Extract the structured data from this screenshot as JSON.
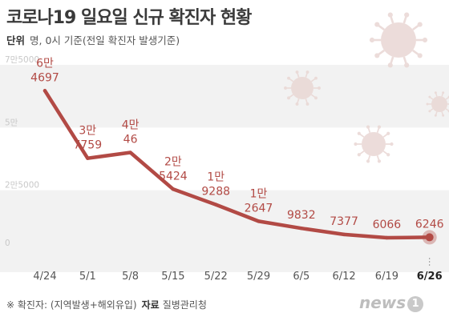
{
  "header": {
    "title": "코로나19 일요일 신규 확진자 현황",
    "unit_label": "단위",
    "unit_text": "명, 0시 기준(전일 확진자 발생기준)"
  },
  "footer": {
    "note": "※ 확진자: (지역발생+해외유입)",
    "source_label": "자료",
    "source_text": "질병관리청"
  },
  "logo": {
    "text": "news",
    "badge": "1"
  },
  "chart_data": {
    "type": "line",
    "title": "코로나19 일요일 신규 확진자 현황",
    "categories": [
      "4/24",
      "5/1",
      "5/8",
      "5/15",
      "5/22",
      "5/29",
      "6/5",
      "6/12",
      "6/19",
      "6/26"
    ],
    "series": [
      {
        "values": [
          64697,
          37759,
          40046,
          25424,
          19288,
          12647,
          9832,
          7377,
          6066,
          6246
        ]
      }
    ],
    "data_labels": [
      [
        "6만",
        "4697"
      ],
      [
        "3만",
        "7759"
      ],
      [
        "4만",
        "46"
      ],
      [
        "2만",
        "5424"
      ],
      [
        "1만",
        "9288"
      ],
      [
        "1만",
        "2647"
      ],
      [
        "",
        "9832"
      ],
      [
        "",
        "7377"
      ],
      [
        "",
        "6066"
      ],
      [
        "",
        "6246"
      ]
    ],
    "y_ticks": [
      {
        "value": 75000,
        "label": "7만5000"
      },
      {
        "value": 50000,
        "label": "5만"
      },
      {
        "value": 25000,
        "label": "2만5000"
      },
      {
        "value": 0,
        "label": "0"
      }
    ],
    "ylim": [
      0,
      75000
    ],
    "highlight_last": true,
    "colors": {
      "line": "#b24a45",
      "label": "#b24a45",
      "band": "#f2f2f2",
      "tick": "#c8c8c8",
      "axis_text": "#555555",
      "virus": "#ead9d6"
    }
  }
}
